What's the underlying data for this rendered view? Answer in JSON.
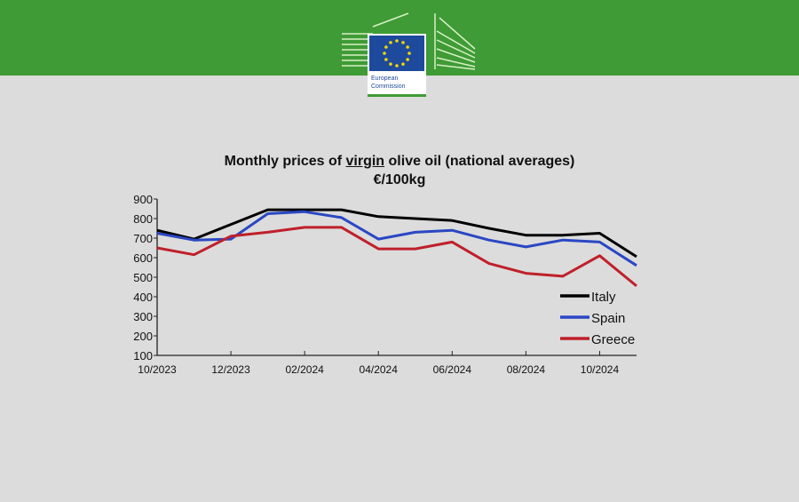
{
  "logo": {
    "text_line1": "European",
    "text_line2": "Commission"
  },
  "chart_data": {
    "type": "line",
    "title": "Monthly prices of virgin olive oil (national averages)",
    "title_underlined_word": "virgin",
    "subtitle": "€/100kg",
    "xlabel": "",
    "ylabel": "",
    "x": [
      "10/2023",
      "11/2023",
      "12/2023",
      "01/2024",
      "02/2024",
      "03/2024",
      "04/2024",
      "05/2024",
      "06/2024",
      "07/2024",
      "08/2024",
      "09/2024",
      "10/2024",
      "11/2024"
    ],
    "xtick_labels": [
      "10/2023",
      "12/2023",
      "02/2024",
      "04/2024",
      "06/2024",
      "08/2024",
      "10/2024"
    ],
    "ylim": [
      100,
      900
    ],
    "yticks": [
      100,
      200,
      300,
      400,
      500,
      600,
      700,
      800,
      900
    ],
    "grid": false,
    "legend": "right",
    "series": [
      {
        "name": "Italy",
        "color": "#000000",
        "values": [
          740,
          695,
          770,
          845,
          845,
          845,
          810,
          800,
          790,
          750,
          715,
          715,
          725,
          605
        ]
      },
      {
        "name": "Spain",
        "color": "#2a47c4",
        "values": [
          725,
          690,
          695,
          825,
          835,
          805,
          695,
          730,
          740,
          690,
          655,
          690,
          680,
          560
        ]
      },
      {
        "name": "Greece",
        "color": "#c0202a",
        "values": [
          650,
          615,
          710,
          730,
          755,
          755,
          645,
          645,
          680,
          570,
          520,
          505,
          610,
          455
        ]
      }
    ]
  }
}
